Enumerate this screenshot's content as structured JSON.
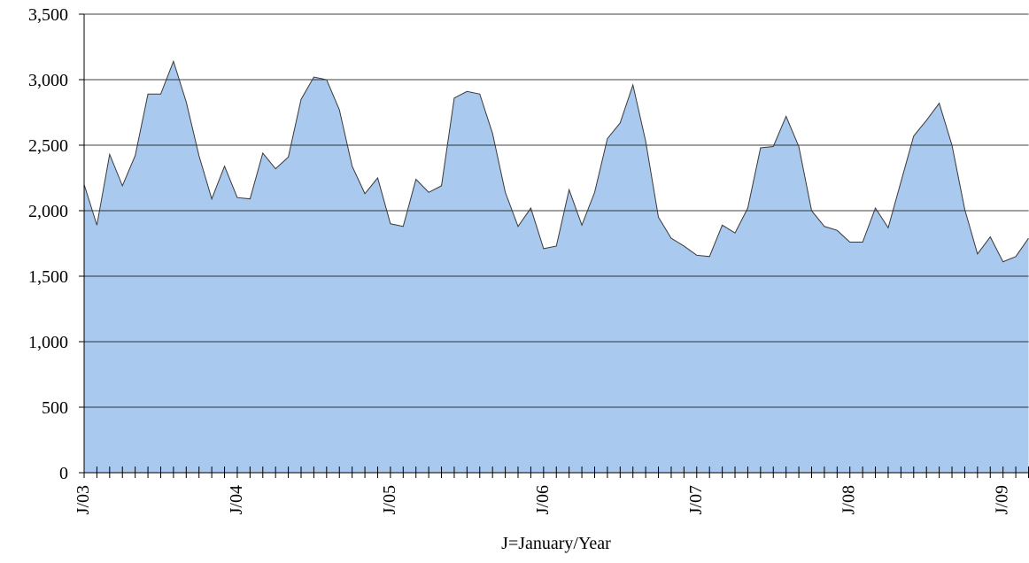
{
  "chart_data": {
    "type": "area",
    "x_label": "J=January/Year",
    "categories": [
      "J/03",
      null,
      null,
      null,
      null,
      null,
      null,
      null,
      null,
      null,
      null,
      null,
      "J/04",
      null,
      null,
      null,
      null,
      null,
      null,
      null,
      null,
      null,
      null,
      null,
      "J/05",
      null,
      null,
      null,
      null,
      null,
      null,
      null,
      null,
      null,
      null,
      null,
      "J/06",
      null,
      null,
      null,
      null,
      null,
      null,
      null,
      null,
      null,
      null,
      null,
      "J/07",
      null,
      null,
      null,
      null,
      null,
      null,
      null,
      null,
      null,
      null,
      null,
      "J/08",
      null,
      null,
      null,
      null,
      null,
      null,
      null,
      null,
      null,
      null,
      null,
      "J/09",
      null,
      null
    ],
    "values": [
      2200,
      1890,
      2430,
      2190,
      2420,
      2890,
      2890,
      3140,
      2830,
      2420,
      2090,
      2340,
      2100,
      2090,
      2440,
      2320,
      2410,
      2850,
      3020,
      3000,
      2770,
      2340,
      2130,
      2250,
      1900,
      1880,
      2240,
      2140,
      2190,
      2860,
      2910,
      2890,
      2590,
      2140,
      1880,
      2020,
      1710,
      1730,
      2160,
      1890,
      2140,
      2550,
      2670,
      2960,
      2530,
      1950,
      1790,
      1730,
      1660,
      1650,
      1890,
      1830,
      2020,
      2480,
      2490,
      2720,
      2490,
      2000,
      1880,
      1850,
      1760,
      1760,
      2020,
      1870,
      2220,
      2570,
      2690,
      2820,
      2500,
      2010,
      1670,
      1800,
      1610,
      1650,
      1790
    ],
    "color": "#a9c9ef",
    "line_color": "#3a3a3a",
    "ylim": [
      0,
      3500
    ],
    "yticks": [
      0,
      500,
      {
        "value": 1000,
        "label": "1,000"
      },
      {
        "value": 1500,
        "label": "1,500"
      },
      {
        "value": 2000,
        "label": "2,000"
      },
      {
        "value": 2500,
        "label": "2,500"
      },
      {
        "value": 3000,
        "label": "3,000"
      },
      {
        "value": 3500,
        "label": "3,500"
      }
    ],
    "grid": true
  }
}
